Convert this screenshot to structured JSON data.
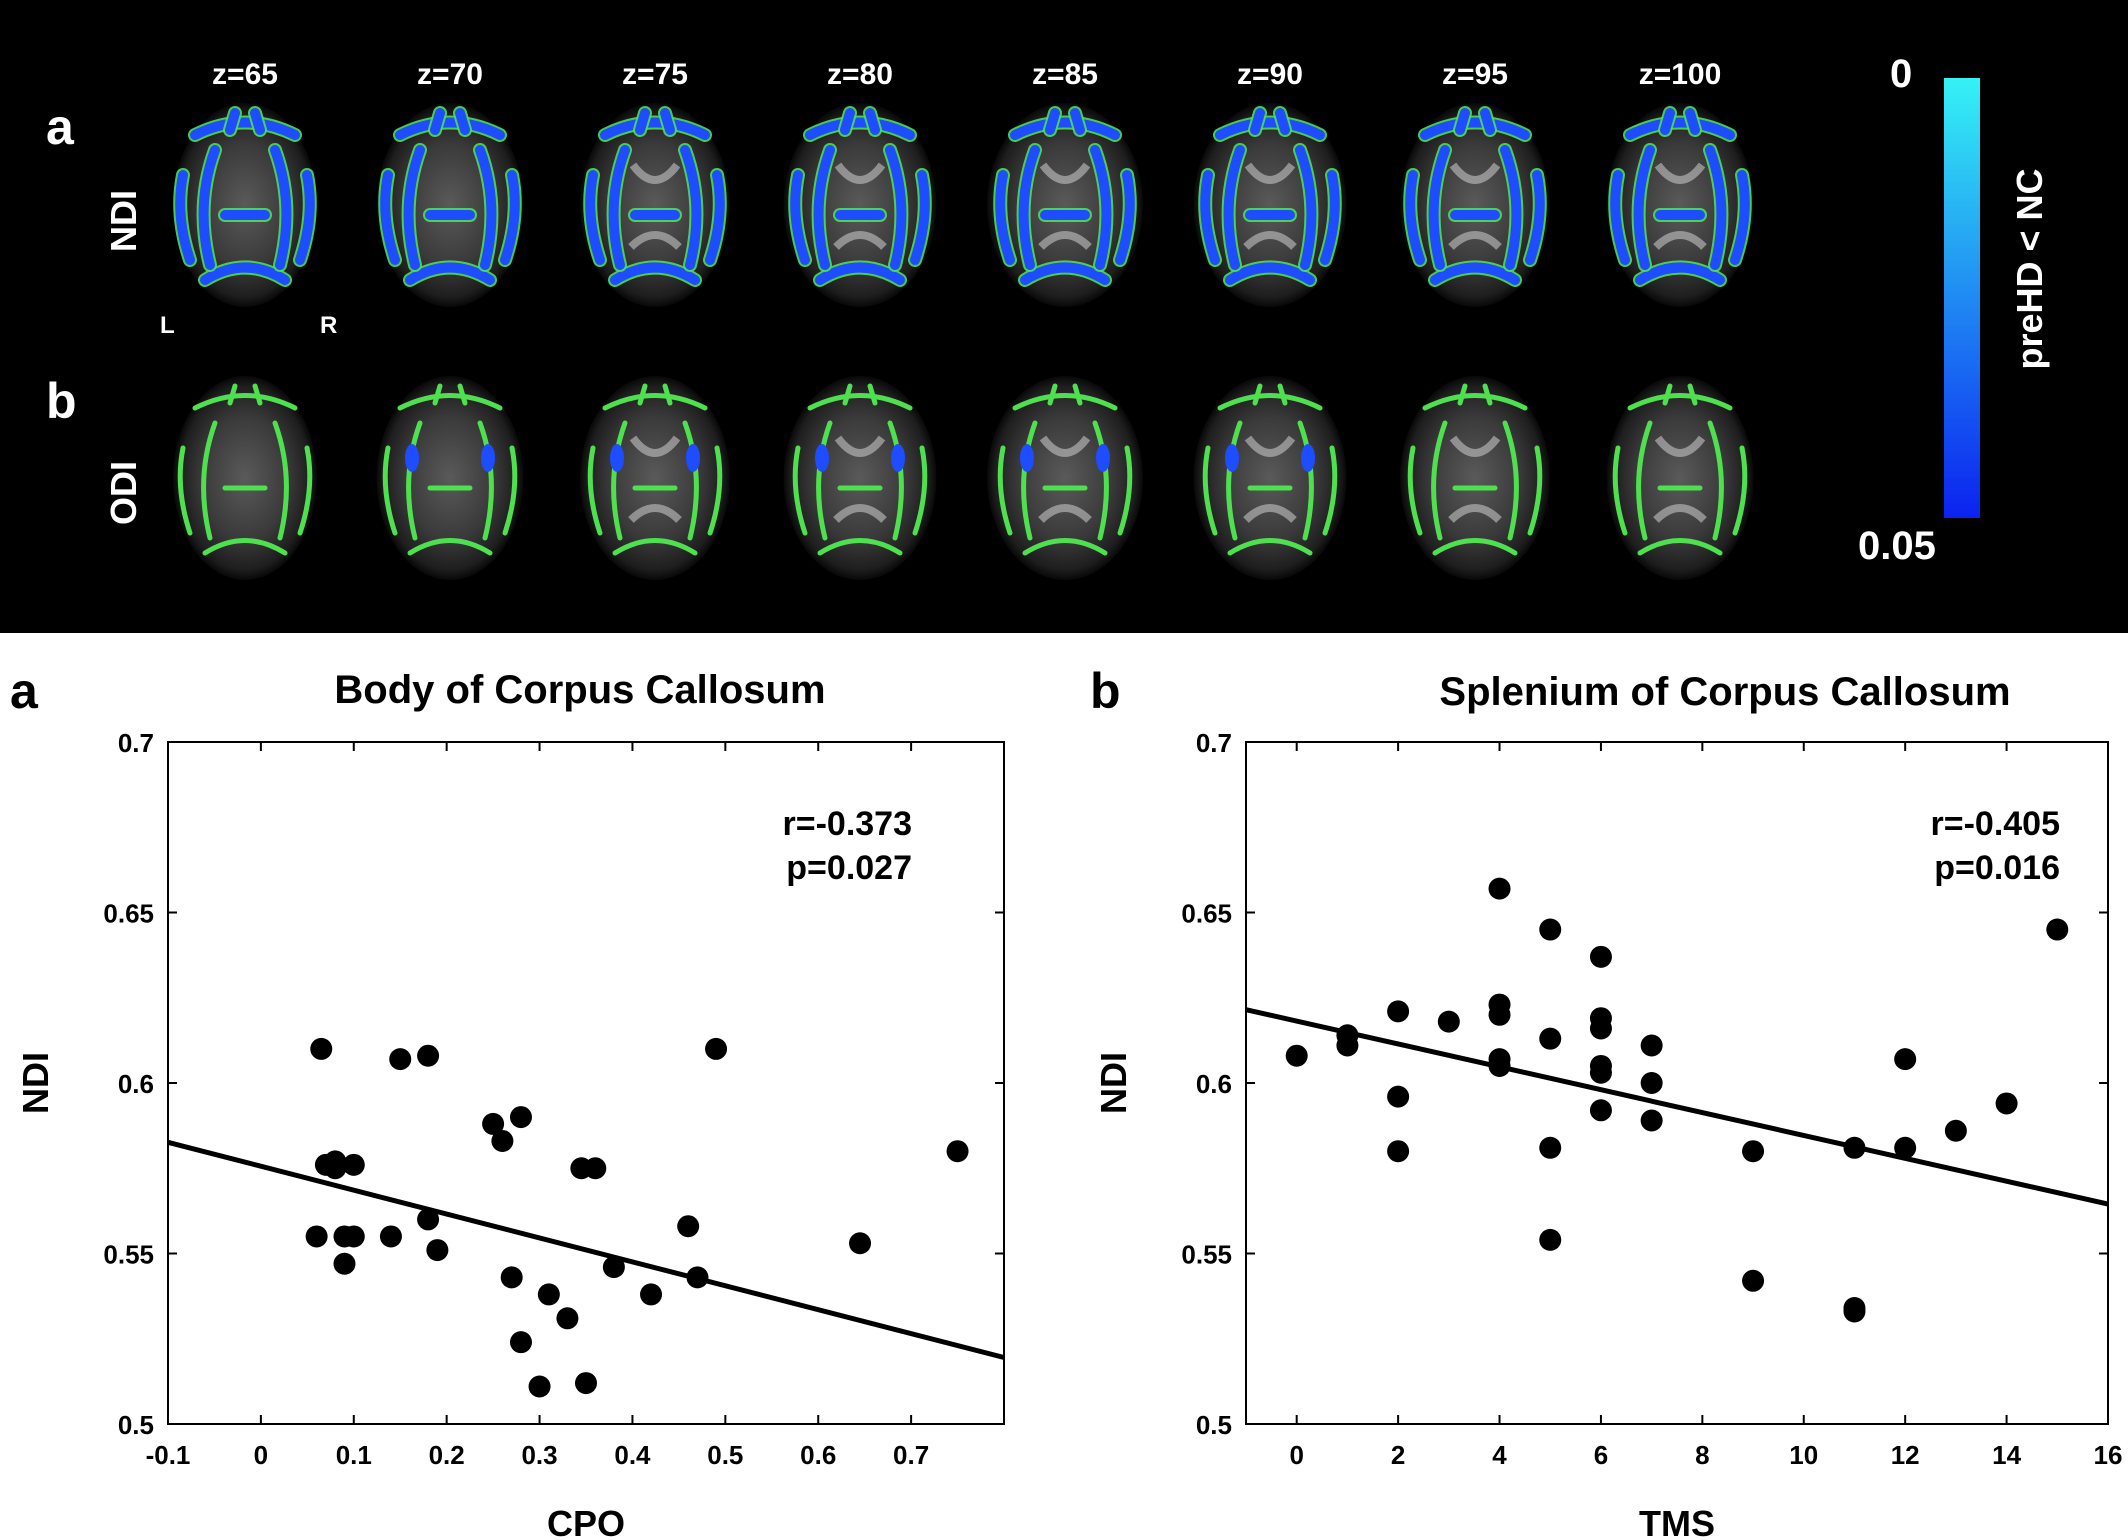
{
  "top_panel": {
    "slices": [
      "z=65",
      "z=70",
      "z=75",
      "z=80",
      "z=85",
      "z=90",
      "z=95",
      "z=100"
    ],
    "rows": [
      {
        "letter": "a",
        "name": "NDI"
      },
      {
        "letter": "b",
        "name": "ODI"
      }
    ],
    "orientation": {
      "left": "L",
      "right": "R"
    },
    "colorbar": {
      "top": "0",
      "bottom": "0.05",
      "title": "preHD < NC",
      "colors": [
        "#35f2f5",
        "#0b22f0"
      ]
    },
    "colors": {
      "tract": "#4fe04f",
      "signif": "#1e4cff"
    }
  },
  "chart_data": [
    {
      "type": "scatter",
      "letter": "a",
      "title": "Body of Corpus Callosum",
      "xlabel": "CPO",
      "ylabel": "NDI",
      "xlim": [
        -0.1,
        0.8
      ],
      "ylim": [
        0.5,
        0.7
      ],
      "xticks": [
        "-0.1",
        "0",
        "0.1",
        "0.2",
        "0.3",
        "0.4",
        "0.5",
        "0.6",
        "0.7"
      ],
      "yticks": [
        "0.5",
        "0.55",
        "0.6",
        "0.65",
        "0.7"
      ],
      "stats": [
        "r=-0.373",
        "p=0.027"
      ],
      "line": [
        [
          -0.1,
          0.5826
        ],
        [
          0.8,
          0.5195
        ]
      ],
      "points": [
        [
          0.065,
          0.61
        ],
        [
          0.06,
          0.555
        ],
        [
          0.07,
          0.576
        ],
        [
          0.08,
          0.577
        ],
        [
          0.08,
          0.575
        ],
        [
          0.09,
          0.555
        ],
        [
          0.09,
          0.547
        ],
        [
          0.1,
          0.555
        ],
        [
          0.1,
          0.576
        ],
        [
          0.14,
          0.555
        ],
        [
          0.15,
          0.607
        ],
        [
          0.18,
          0.608
        ],
        [
          0.18,
          0.56
        ],
        [
          0.19,
          0.551
        ],
        [
          0.25,
          0.588
        ],
        [
          0.26,
          0.583
        ],
        [
          0.27,
          0.543
        ],
        [
          0.28,
          0.524
        ],
        [
          0.28,
          0.59
        ],
        [
          0.3,
          0.511
        ],
        [
          0.31,
          0.538
        ],
        [
          0.33,
          0.531
        ],
        [
          0.345,
          0.575
        ],
        [
          0.35,
          0.512
        ],
        [
          0.36,
          0.575
        ],
        [
          0.38,
          0.546
        ],
        [
          0.42,
          0.538
        ],
        [
          0.46,
          0.558
        ],
        [
          0.47,
          0.543
        ],
        [
          0.49,
          0.61
        ],
        [
          0.645,
          0.553
        ],
        [
          0.75,
          0.58
        ]
      ]
    },
    {
      "type": "scatter",
      "letter": "b",
      "title": "Splenium of Corpus Callosum",
      "xlabel": "TMS",
      "ylabel": "NDI",
      "xlim": [
        -1,
        16
      ],
      "ylim": [
        0.5,
        0.7
      ],
      "xticks": [
        "0",
        "2",
        "4",
        "6",
        "8",
        "10",
        "12",
        "14",
        "16"
      ],
      "yticks": [
        "0.5",
        "0.55",
        "0.6",
        "0.65",
        "0.7"
      ],
      "stats": [
        "r=-0.405",
        "p=0.016"
      ],
      "line": [
        [
          -1,
          0.6215
        ],
        [
          16,
          0.5645
        ]
      ],
      "points": [
        [
          0,
          0.608
        ],
        [
          1,
          0.614
        ],
        [
          1,
          0.611
        ],
        [
          2,
          0.621
        ],
        [
          2,
          0.596
        ],
        [
          2,
          0.58
        ],
        [
          3,
          0.618
        ],
        [
          4,
          0.657
        ],
        [
          4,
          0.623
        ],
        [
          4,
          0.62
        ],
        [
          4,
          0.607
        ],
        [
          4,
          0.605
        ],
        [
          5,
          0.645
        ],
        [
          5,
          0.613
        ],
        [
          5,
          0.581
        ],
        [
          5,
          0.554
        ],
        [
          6,
          0.637
        ],
        [
          6,
          0.619
        ],
        [
          6,
          0.616
        ],
        [
          6,
          0.605
        ],
        [
          6,
          0.603
        ],
        [
          6,
          0.592
        ],
        [
          7,
          0.611
        ],
        [
          7,
          0.6
        ],
        [
          7,
          0.589
        ],
        [
          9,
          0.58
        ],
        [
          9,
          0.542
        ],
        [
          11,
          0.581
        ],
        [
          11,
          0.534
        ],
        [
          11,
          0.533
        ],
        [
          12,
          0.607
        ],
        [
          12,
          0.581
        ],
        [
          13,
          0.586
        ],
        [
          14,
          0.594
        ],
        [
          15,
          0.645
        ]
      ]
    }
  ]
}
